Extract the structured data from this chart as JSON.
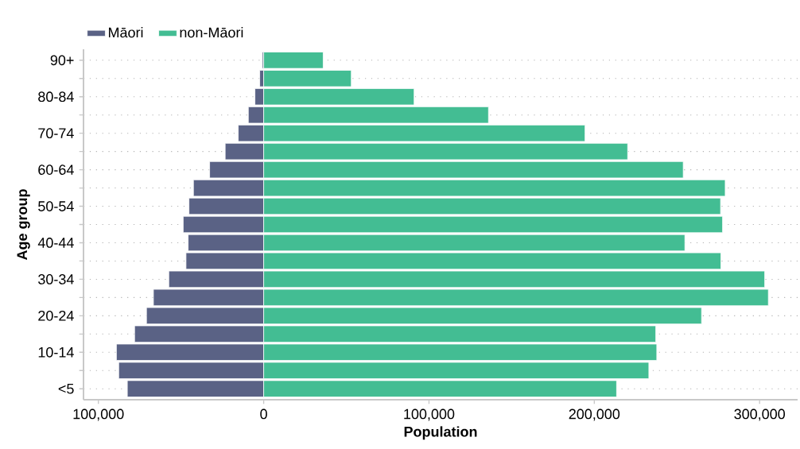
{
  "chart_data": {
    "type": "bar",
    "orientation": "horizontal",
    "stacked": true,
    "xlabel": "Population",
    "ylabel": "Age group",
    "categories": [
      "90+",
      null,
      "80-84",
      null,
      "70-74",
      null,
      "60-64",
      null,
      "50-54",
      null,
      "40-44",
      null,
      "30-34",
      null,
      "20-24",
      null,
      "10-14",
      null,
      "<5"
    ],
    "series": [
      {
        "name": "Māori",
        "color": "#5a6285",
        "values": [
          -800,
          -2400,
          -5300,
          -9300,
          -15400,
          -23300,
          -32700,
          -42500,
          -45200,
          -48700,
          -45700,
          -47000,
          -57400,
          -66700,
          -70900,
          -78100,
          -89100,
          -87700,
          -82500
        ]
      },
      {
        "name": "non-Māori",
        "color": "#43bd93",
        "values": [
          36000,
          53000,
          91000,
          136000,
          194400,
          220200,
          253800,
          279200,
          276400,
          277600,
          254800,
          276600,
          303100,
          305300,
          264900,
          237200,
          237800,
          233000,
          213500
        ]
      }
    ],
    "xlim": [
      -109000,
      323000
    ],
    "xticks": [
      {
        "value": -100000,
        "label": "100,000"
      },
      0,
      {
        "value": 100000,
        "label": "100,000"
      },
      {
        "value": 200000,
        "label": "200,000"
      },
      {
        "value": 300000,
        "label": "300,000"
      }
    ],
    "grid": "y",
    "legend": "top left"
  }
}
